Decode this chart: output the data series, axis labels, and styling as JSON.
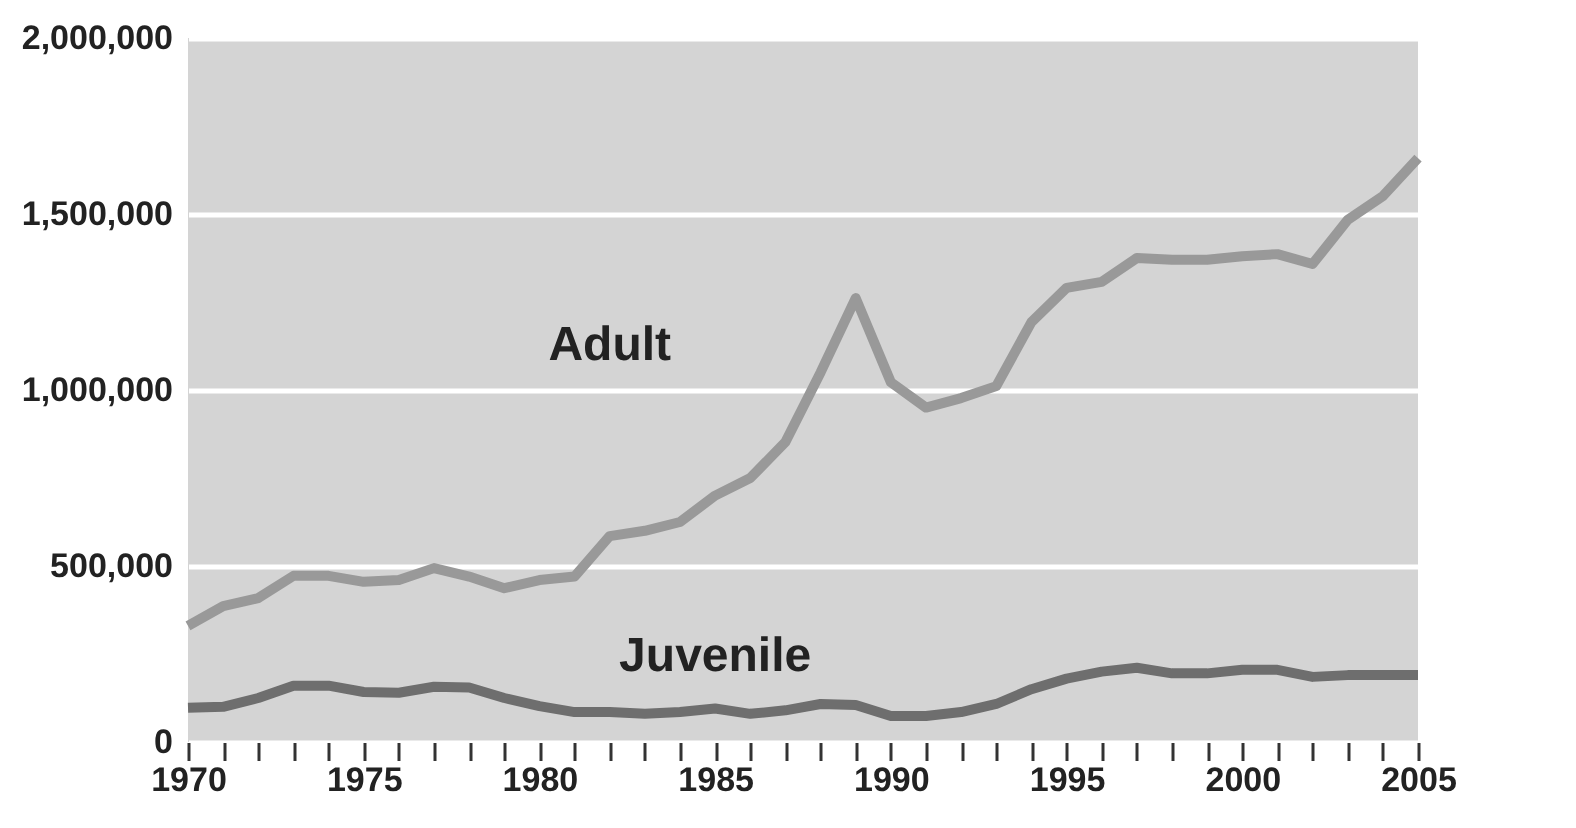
{
  "chart_data": {
    "type": "line",
    "x": [
      1970,
      1971,
      1972,
      1973,
      1974,
      1975,
      1976,
      1977,
      1978,
      1979,
      1980,
      1981,
      1982,
      1983,
      1984,
      1985,
      1986,
      1987,
      1988,
      1989,
      1990,
      1991,
      1992,
      1993,
      1994,
      1995,
      1996,
      1997,
      1998,
      1999,
      2000,
      2001,
      2002,
      2003,
      2004,
      2005
    ],
    "series": [
      {
        "name": "Adult",
        "color": "#999999",
        "values": [
          330000,
          386000,
          409000,
          472000,
          472000,
          455000,
          460000,
          494000,
          470000,
          437000,
          460000,
          470000,
          585000,
          600000,
          625000,
          700000,
          750000,
          852000,
          1050000,
          1261000,
          1022000,
          950000,
          977000,
          1011000,
          1193000,
          1290000,
          1307000,
          1375000,
          1370000,
          1370000,
          1380000,
          1386000,
          1358000,
          1483000,
          1551000,
          1659000
        ]
      },
      {
        "name": "Juvenile",
        "color": "#6e6e6e",
        "values": [
          97000,
          100000,
          125000,
          160000,
          160000,
          142000,
          140000,
          157000,
          155000,
          125000,
          102000,
          85000,
          85000,
          80000,
          85000,
          95000,
          80000,
          90000,
          108000,
          105000,
          74000,
          74000,
          85000,
          108000,
          150000,
          180000,
          200000,
          211000,
          195000,
          195000,
          205000,
          205000,
          185000,
          190000,
          190000,
          190000
        ]
      }
    ],
    "xlim": [
      1970,
      2005
    ],
    "xticks": [
      1970,
      {
        "value": 1971,
        "label": null
      },
      {
        "value": 1972,
        "label": null
      },
      {
        "value": 1973,
        "label": null
      },
      {
        "value": 1974,
        "label": null
      },
      1975,
      {
        "value": 1976,
        "label": null
      },
      {
        "value": 1977,
        "label": null
      },
      {
        "value": 1978,
        "label": null
      },
      {
        "value": 1979,
        "label": null
      },
      1980,
      {
        "value": 1981,
        "label": null
      },
      {
        "value": 1982,
        "label": null
      },
      {
        "value": 1983,
        "label": null
      },
      {
        "value": 1984,
        "label": null
      },
      1985,
      {
        "value": 1986,
        "label": null
      },
      {
        "value": 1987,
        "label": null
      },
      {
        "value": 1988,
        "label": null
      },
      {
        "value": 1989,
        "label": null
      },
      1990,
      {
        "value": 1991,
        "label": null
      },
      {
        "value": 1992,
        "label": null
      },
      {
        "value": 1993,
        "label": null
      },
      {
        "value": 1994,
        "label": null
      },
      1995,
      {
        "value": 1996,
        "label": null
      },
      {
        "value": 1997,
        "label": null
      },
      {
        "value": 1998,
        "label": null
      },
      {
        "value": 1999,
        "label": null
      },
      2000,
      {
        "value": 2001,
        "label": null
      },
      {
        "value": 2002,
        "label": null
      },
      {
        "value": 2003,
        "label": null
      },
      {
        "value": 2004,
        "label": null
      },
      2005
    ],
    "ylim": [
      0,
      2000000
    ],
    "yticks": [
      0,
      {
        "value": 500000,
        "label": "500,000"
      },
      {
        "value": 1000000,
        "label": "1,000,000"
      },
      {
        "value": 1500000,
        "label": "1,500,000"
      },
      {
        "value": 2000000,
        "label": "2,000,000"
      }
    ],
    "grid": "y",
    "line_style": "solid",
    "legend": false
  }
}
